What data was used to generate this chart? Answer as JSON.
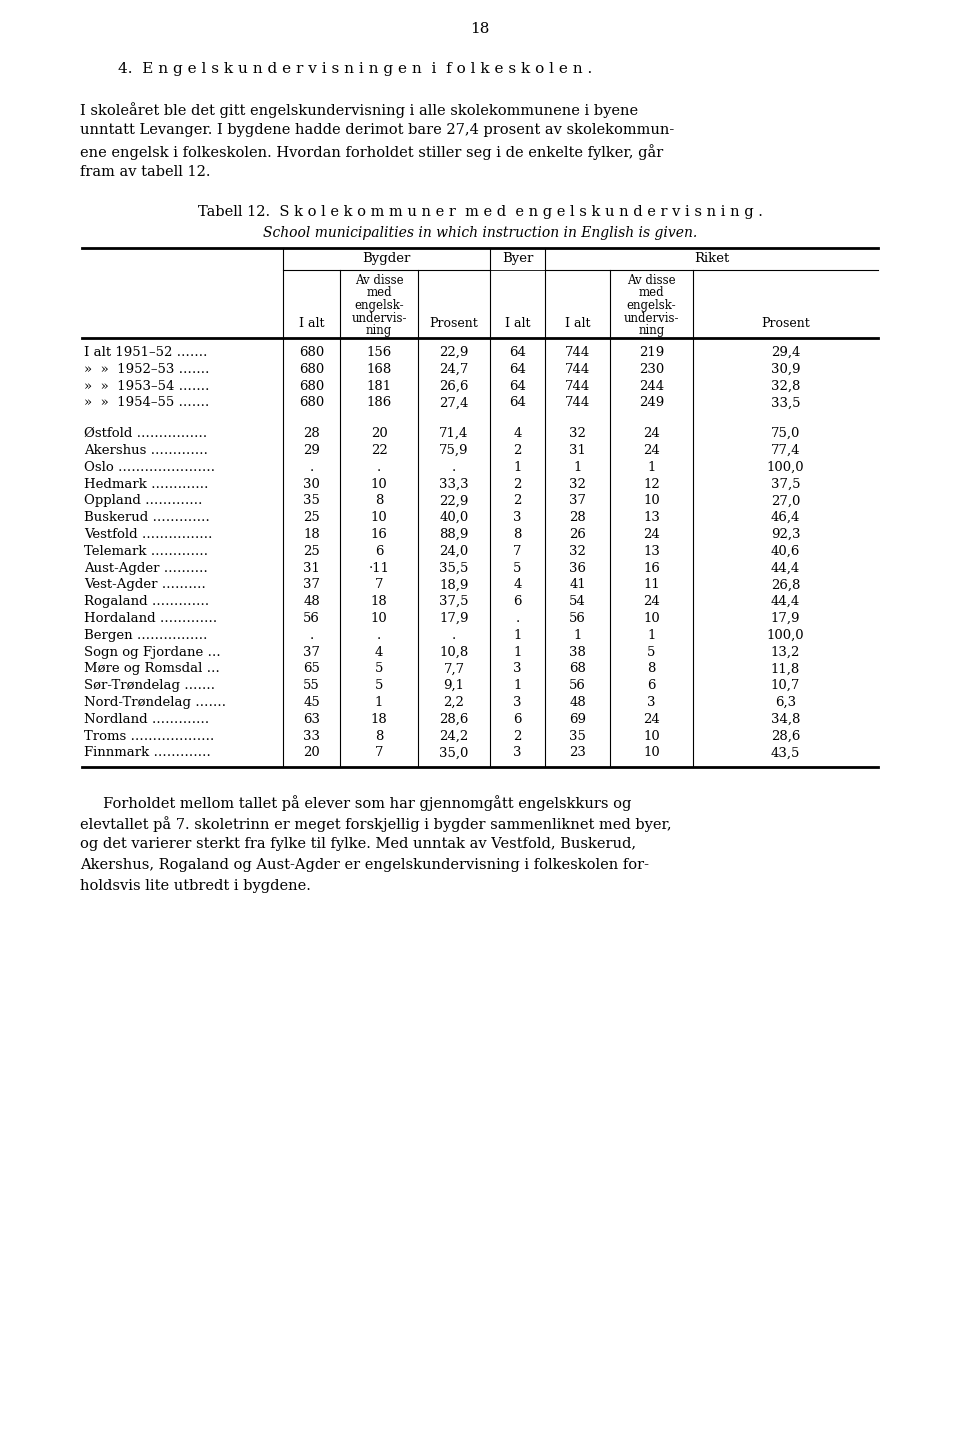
{
  "page_number": "18",
  "section_title": "4.  E n g e l s k u n d e r v i s n i n g e n  i  f o l k e s k o l e n .",
  "intro_text": [
    "I skoleåret ble det gitt engelskundervisning i alle skolekommunene i byene",
    "unntatt Levanger. I bygdene hadde derimot bare 27,4 prosent av skolekommun-",
    "ene engelsk i folkeskolen. Hvordan forholdet stiller seg i de enkelte fylker, går",
    "fram av tabell 12."
  ],
  "table_title_no": "Tabell 12.  S k o l e k o m m u n e r  m e d  e n g e l s k u n d e r v i s n i n g .",
  "table_title_en": "School municipalities in which instruction in English is given.",
  "rows": [
    {
      "label": "I alt 1951–52 …….",
      "bygder_ialt": "680",
      "bygder_av": "156",
      "bygder_pct": "22,9",
      "byer_ialt": "64",
      "riket_ialt": "744",
      "riket_av": "219",
      "riket_pct": "29,4"
    },
    {
      "label": "»  »  1952–53 …….",
      "bygder_ialt": "680",
      "bygder_av": "168",
      "bygder_pct": "24,7",
      "byer_ialt": "64",
      "riket_ialt": "744",
      "riket_av": "230",
      "riket_pct": "30,9"
    },
    {
      "label": "»  »  1953–54 …….",
      "bygder_ialt": "680",
      "bygder_av": "181",
      "bygder_pct": "26,6",
      "byer_ialt": "64",
      "riket_ialt": "744",
      "riket_av": "244",
      "riket_pct": "32,8"
    },
    {
      "label": "»  »  1954–55 …….",
      "bygder_ialt": "680",
      "bygder_av": "186",
      "bygder_pct": "27,4",
      "byer_ialt": "64",
      "riket_ialt": "744",
      "riket_av": "249",
      "riket_pct": "33,5"
    },
    {
      "label": "",
      "bygder_ialt": "",
      "bygder_av": "",
      "bygder_pct": "",
      "byer_ialt": "",
      "riket_ialt": "",
      "riket_av": "",
      "riket_pct": ""
    },
    {
      "label": "Østfold …………….",
      "bygder_ialt": "28",
      "bygder_av": "20",
      "bygder_pct": "71,4",
      "byer_ialt": "4",
      "riket_ialt": "32",
      "riket_av": "24",
      "riket_pct": "75,0"
    },
    {
      "label": "Akershus ………….",
      "bygder_ialt": "29",
      "bygder_av": "22",
      "bygder_pct": "75,9",
      "byer_ialt": "2",
      "riket_ialt": "31",
      "riket_av": "24",
      "riket_pct": "77,4"
    },
    {
      "label": "Oslo ………………….",
      "bygder_ialt": ".",
      "bygder_av": ".",
      "bygder_pct": ".",
      "byer_ialt": "1",
      "riket_ialt": "1",
      "riket_av": "1",
      "riket_pct": "100,0"
    },
    {
      "label": "Hedmark ………….",
      "bygder_ialt": "30",
      "bygder_av": "10",
      "bygder_pct": "33,3",
      "byer_ialt": "2",
      "riket_ialt": "32",
      "riket_av": "12",
      "riket_pct": "37,5"
    },
    {
      "label": "Oppland ………….",
      "bygder_ialt": "35",
      "bygder_av": "8",
      "bygder_pct": "22,9",
      "byer_ialt": "2",
      "riket_ialt": "37",
      "riket_av": "10",
      "riket_pct": "27,0"
    },
    {
      "label": "Buskerud ………….",
      "bygder_ialt": "25",
      "bygder_av": "10",
      "bygder_pct": "40,0",
      "byer_ialt": "3",
      "riket_ialt": "28",
      "riket_av": "13",
      "riket_pct": "46,4"
    },
    {
      "label": "Vestfold …………….",
      "bygder_ialt": "18",
      "bygder_av": "16",
      "bygder_pct": "88,9",
      "byer_ialt": "8",
      "riket_ialt": "26",
      "riket_av": "24",
      "riket_pct": "92,3"
    },
    {
      "label": "Telemark ………….",
      "bygder_ialt": "25",
      "bygder_av": "6",
      "bygder_pct": "24,0",
      "byer_ialt": "7",
      "riket_ialt": "32",
      "riket_av": "13",
      "riket_pct": "40,6"
    },
    {
      "label": "Aust-Agder ……….",
      "bygder_ialt": "31",
      "bygder_av": "·11",
      "bygder_pct": "35,5",
      "byer_ialt": "5",
      "riket_ialt": "36",
      "riket_av": "16",
      "riket_pct": "44,4"
    },
    {
      "label": "Vest-Agder ……….",
      "bygder_ialt": "37",
      "bygder_av": "7",
      "bygder_pct": "18,9",
      "byer_ialt": "4",
      "riket_ialt": "41",
      "riket_av": "11",
      "riket_pct": "26,8"
    },
    {
      "label": "Rogaland ………….",
      "bygder_ialt": "48",
      "bygder_av": "18",
      "bygder_pct": "37,5",
      "byer_ialt": "6",
      "riket_ialt": "54",
      "riket_av": "24",
      "riket_pct": "44,4"
    },
    {
      "label": "Hordaland ………….",
      "bygder_ialt": "56",
      "bygder_av": "10",
      "bygder_pct": "17,9",
      "byer_ialt": ".",
      "riket_ialt": "56",
      "riket_av": "10",
      "riket_pct": "17,9"
    },
    {
      "label": "Bergen …………….",
      "bygder_ialt": ".",
      "bygder_av": ".",
      "bygder_pct": ".",
      "byer_ialt": "1",
      "riket_ialt": "1",
      "riket_av": "1",
      "riket_pct": "100,0"
    },
    {
      "label": "Sogn og Fjordane …",
      "bygder_ialt": "37",
      "bygder_av": "4",
      "bygder_pct": "10,8",
      "byer_ialt": "1",
      "riket_ialt": "38",
      "riket_av": "5",
      "riket_pct": "13,2"
    },
    {
      "label": "Møre og Romsdal …",
      "bygder_ialt": "65",
      "bygder_av": "5",
      "bygder_pct": "7,7",
      "byer_ialt": "3",
      "riket_ialt": "68",
      "riket_av": "8",
      "riket_pct": "11,8"
    },
    {
      "label": "Sør-Trøndelag …….",
      "bygder_ialt": "55",
      "bygder_av": "5",
      "bygder_pct": "9,1",
      "byer_ialt": "1",
      "riket_ialt": "56",
      "riket_av": "6",
      "riket_pct": "10,7"
    },
    {
      "label": "Nord-Trøndelag …….",
      "bygder_ialt": "45",
      "bygder_av": "1",
      "bygder_pct": "2,2",
      "byer_ialt": "3",
      "riket_ialt": "48",
      "riket_av": "3",
      "riket_pct": "6,3"
    },
    {
      "label": "Nordland ………….",
      "bygder_ialt": "63",
      "bygder_av": "18",
      "bygder_pct": "28,6",
      "byer_ialt": "6",
      "riket_ialt": "69",
      "riket_av": "24",
      "riket_pct": "34,8"
    },
    {
      "label": "Troms ……………….",
      "bygder_ialt": "33",
      "bygder_av": "8",
      "bygder_pct": "24,2",
      "byer_ialt": "2",
      "riket_ialt": "35",
      "riket_av": "10",
      "riket_pct": "28,6"
    },
    {
      "label": "Finnmark ………….",
      "bygder_ialt": "20",
      "bygder_av": "7",
      "bygder_pct": "35,0",
      "byer_ialt": "3",
      "riket_ialt": "23",
      "riket_av": "10",
      "riket_pct": "43,5"
    }
  ],
  "footer_text": [
    "     Forholdet mellom tallet på elever som har gjennomgått engelskkurs og",
    "elevtallet på 7. skoletrinn er meget forskjellig i bygder sammenliknet med byer,",
    "og det varierer sterkt fra fylke til fylke. Med unntak av Vestfold, Buskerud,",
    "Akershus, Rogaland og Aust-Agder er engelskundervisning i folkeskolen for-",
    "holdsvis lite utbredt i bygdene."
  ]
}
